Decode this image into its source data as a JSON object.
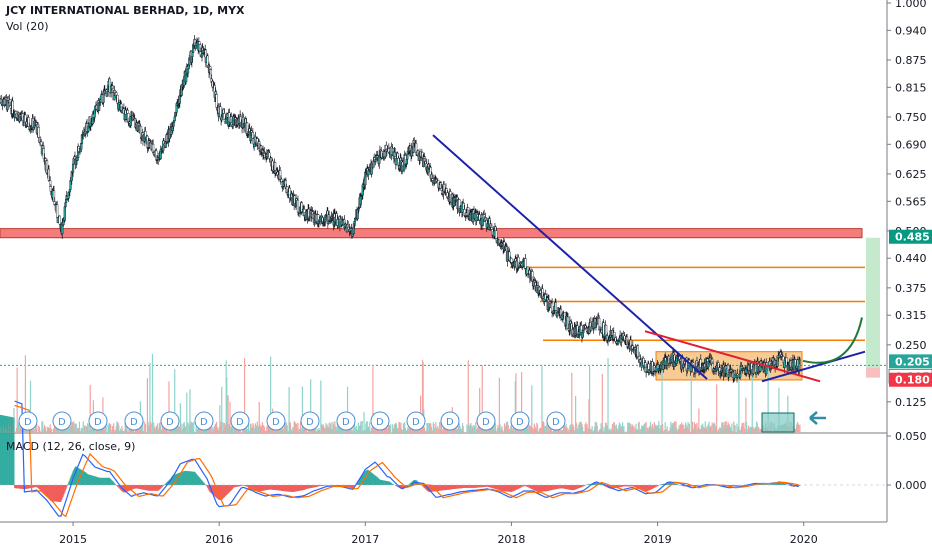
{
  "header": {
    "title": "JCY INTERNATIONAL BERHAD, 1D, MYX",
    "volume_label": "Vol (20)",
    "macd_label": "MACD (12, 26, close, 9)"
  },
  "chart_data": {
    "type": "candlestick",
    "y_ticks": [
      "1.000",
      "0.940",
      "0.875",
      "0.815",
      "0.750",
      "0.690",
      "0.625",
      "0.565",
      "0.500",
      "0.440",
      "0.375",
      "0.315",
      "0.250",
      "0.125",
      "0.050"
    ],
    "macd_tick": "0.000",
    "x_ticks": [
      "2015",
      "2016",
      "2017",
      "2018",
      "2019",
      "2020"
    ],
    "price_labels": [
      {
        "text": "0.485",
        "color": "#089981"
      },
      {
        "text": "0.205",
        "color": "#26a69a"
      },
      {
        "text": "0.205",
        "color": "#131722"
      },
      {
        "text": "0.180",
        "color": "#f23645"
      }
    ],
    "dividend_marker": "D",
    "price_path": [
      [
        "2014-07",
        0.79
      ],
      [
        "2014-08",
        0.77
      ],
      [
        "2014-09",
        0.74
      ],
      [
        "2014-10",
        0.73
      ],
      [
        "2014-11",
        0.62
      ],
      [
        "2014-12",
        0.5
      ],
      [
        "2015-01",
        0.64
      ],
      [
        "2015-02",
        0.72
      ],
      [
        "2015-03",
        0.77
      ],
      [
        "2015-04",
        0.82
      ],
      [
        "2015-05",
        0.76
      ],
      [
        "2015-06",
        0.74
      ],
      [
        "2015-07",
        0.7
      ],
      [
        "2015-08",
        0.66
      ],
      [
        "2015-09",
        0.72
      ],
      [
        "2015-10",
        0.82
      ],
      [
        "2015-11",
        0.91
      ],
      [
        "2015-12",
        0.88
      ],
      [
        "2016-01",
        0.76
      ],
      [
        "2016-02",
        0.74
      ],
      [
        "2016-03",
        0.74
      ],
      [
        "2016-04",
        0.69
      ],
      [
        "2016-05",
        0.66
      ],
      [
        "2016-06",
        0.62
      ],
      [
        "2016-07",
        0.57
      ],
      [
        "2016-08",
        0.54
      ],
      [
        "2016-09",
        0.53
      ],
      [
        "2016-10",
        0.53
      ],
      [
        "2016-11",
        0.52
      ],
      [
        "2016-12",
        0.5
      ],
      [
        "2017-01",
        0.62
      ],
      [
        "2017-02",
        0.66
      ],
      [
        "2017-03",
        0.68
      ],
      [
        "2017-04",
        0.64
      ],
      [
        "2017-05",
        0.69
      ],
      [
        "2017-06",
        0.64
      ],
      [
        "2017-07",
        0.6
      ],
      [
        "2017-08",
        0.57
      ],
      [
        "2017-09",
        0.55
      ],
      [
        "2017-10",
        0.53
      ],
      [
        "2017-11",
        0.52
      ],
      [
        "2017-12",
        0.48
      ],
      [
        "2018-01",
        0.43
      ],
      [
        "2018-02",
        0.43
      ],
      [
        "2018-03",
        0.38
      ],
      [
        "2018-04",
        0.34
      ],
      [
        "2018-05",
        0.32
      ],
      [
        "2018-06",
        0.28
      ],
      [
        "2018-07",
        0.28
      ],
      [
        "2018-08",
        0.3
      ],
      [
        "2018-09",
        0.27
      ],
      [
        "2018-10",
        0.26
      ],
      [
        "2018-11",
        0.25
      ],
      [
        "2018-12",
        0.2
      ],
      [
        "2019-01",
        0.2
      ],
      [
        "2019-02",
        0.22
      ],
      [
        "2019-03",
        0.21
      ],
      [
        "2019-04",
        0.2
      ],
      [
        "2019-05",
        0.21
      ],
      [
        "2019-06",
        0.2
      ],
      [
        "2019-07",
        0.19
      ],
      [
        "2019-08",
        0.19
      ],
      [
        "2019-09",
        0.2
      ],
      [
        "2019-10",
        0.2
      ],
      [
        "2019-11",
        0.22
      ],
      [
        "2019-12",
        0.205
      ]
    ],
    "levels": {
      "support_zone": [
        0.485,
        0.505
      ],
      "fib_lines": [
        0.42,
        0.345,
        0.26
      ]
    },
    "colors": {
      "up": "#26a69a",
      "down": "#ef5350",
      "candle": "#131722",
      "blue_trend": "#1e22aa",
      "red_trend": "#e02030",
      "zone": "#f57c7c",
      "box": "#f5b972",
      "orange": "#f57c00",
      "green_arrow": "#1f7a3a"
    }
  }
}
